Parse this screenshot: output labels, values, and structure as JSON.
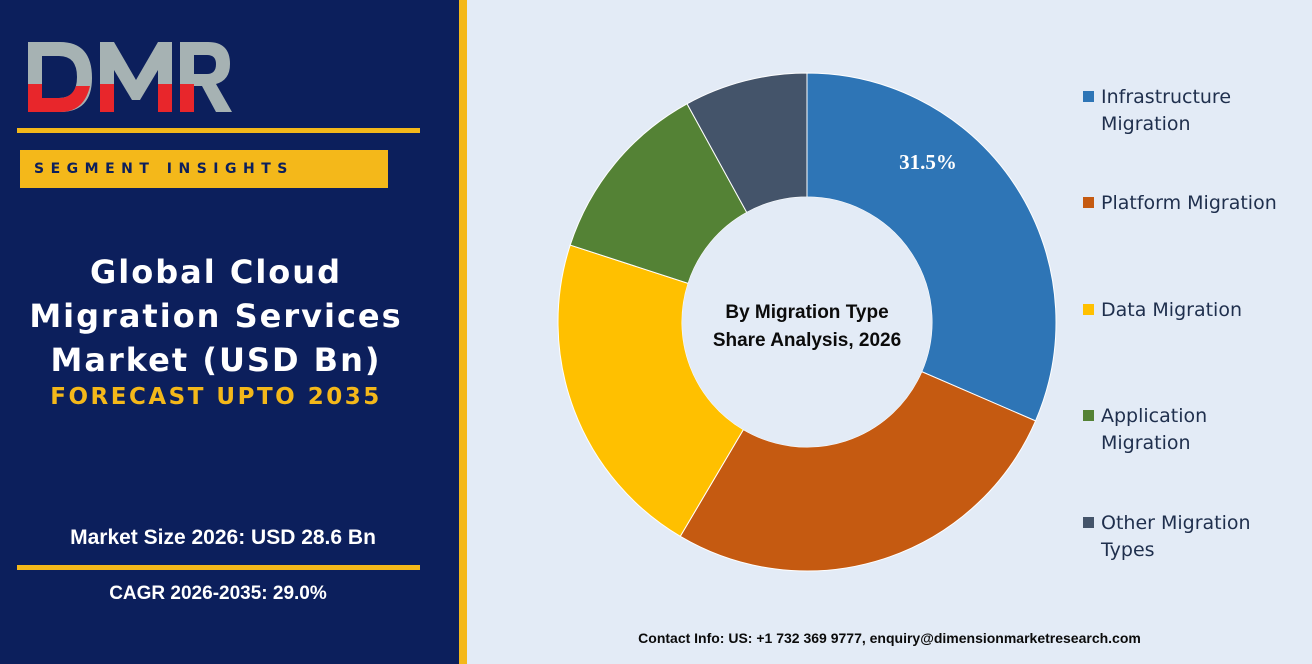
{
  "brand": {
    "logo_text": "DMR",
    "colors": {
      "logo_red": "#e8262b",
      "logo_gray": "#a6b2b3",
      "navy": "#0c1f5c",
      "gold": "#f4b81a"
    }
  },
  "header": {
    "segment_label": "SEGMENT INSIGHTS",
    "title_lines": [
      "Global Cloud",
      "Migration Services",
      "Market (USD Bn)"
    ],
    "forecast": "FORECAST UPTO 2035"
  },
  "stats": {
    "market_size": "Market Size 2026: USD 28.6 Bn",
    "cagr": "CAGR 2026-2035: 29.0%"
  },
  "chart_data": {
    "type": "pie",
    "donut": true,
    "center_label": [
      "By Migration Type",
      "Share Analysis, 2026"
    ],
    "categories": [
      "Infrastructure Migration",
      "Platform Migration",
      "Data Migration",
      "Application Migration",
      "Other Migration Types"
    ],
    "values": [
      31.5,
      27.0,
      21.5,
      12.0,
      8.0
    ],
    "value_labels": [
      "31.5%",
      "",
      "",
      "",
      ""
    ],
    "colors": [
      "#2e75b6",
      "#c55a11",
      "#ffc000",
      "#548235",
      "#44546a"
    ],
    "legend_lines": [
      [
        "Infrastructure",
        "Migration"
      ],
      [
        "Platform Migration"
      ],
      [
        "Data Migration"
      ],
      [
        "Application",
        "Migration"
      ],
      [
        "Other Migration",
        "Types"
      ]
    ],
    "legend_position": "right"
  },
  "footer": {
    "contact": "Contact Info: US: +1 732 369 9777, enquiry@dimensionmarketresearch.com"
  }
}
